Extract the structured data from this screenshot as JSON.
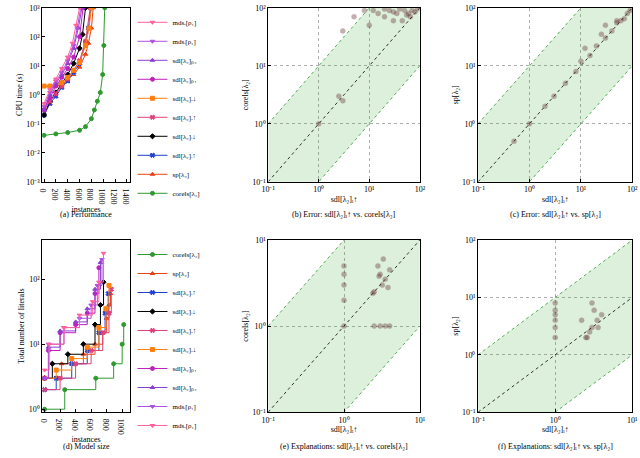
{
  "chart_data": [
    {
      "type": "line",
      "title": "(a) Performance",
      "x_label": "instances",
      "y_label": "CPU time (s)",
      "log": "y",
      "grid": false,
      "legend": "right",
      "line_style": "solid",
      "xlim": [
        -30,
        1450
      ],
      "xticks": [
        0,
        200,
        400,
        600,
        800,
        1000,
        1200,
        1400
      ],
      "ylim": [
        0.001,
        1000
      ],
      "yticks": [
        {
          "value": 0.001,
          "label": "10⁻³"
        },
        {
          "value": 0.01,
          "label": "10⁻²"
        },
        {
          "value": 0.1,
          "label": "10⁻¹"
        },
        {
          "value": 1,
          "label": "10⁰"
        },
        {
          "value": 10,
          "label": "10¹"
        },
        {
          "value": 100,
          "label": "10²"
        },
        {
          "value": 1000,
          "label": "10³"
        }
      ],
      "series": [
        {
          "name": "corels[λ₂]",
          "color": "#2e9a2e",
          "marker": "circle",
          "x": [
            0,
            200,
            400,
            600,
            700,
            800,
            850,
            900,
            950,
            990,
            1010,
            1025
          ],
          "values": [
            0.04,
            0.045,
            0.05,
            0.06,
            0.08,
            0.15,
            0.3,
            0.6,
            1.2,
            5,
            50,
            1000
          ]
        },
        {
          "name": "sp[λ₂]",
          "color": "#e8421a",
          "marker": "triangle-up",
          "x": [
            0,
            100,
            200,
            300,
            400,
            500,
            600,
            700,
            750,
            800,
            830
          ],
          "values": [
            2,
            2,
            2,
            2.2,
            3.5,
            5,
            9,
            25,
            60,
            200,
            1000
          ]
        },
        {
          "name": "sdl[λ₂]ᵢ↑",
          "color": "#1f3fd0",
          "marker": "x",
          "x": [
            0,
            100,
            200,
            300,
            400,
            500,
            600,
            700,
            750,
            790
          ],
          "values": [
            0.2,
            0.5,
            0.9,
            1.8,
            3,
            6,
            12,
            60,
            200,
            1000
          ]
        },
        {
          "name": "sdl[λ₂]ᵢ↓",
          "color": "#000000",
          "marker": "diamond",
          "x": [
            0,
            100,
            200,
            300,
            400,
            500,
            600,
            650,
            700
          ],
          "values": [
            0.2,
            0.6,
            1.2,
            2.5,
            5,
            12,
            40,
            120,
            1000
          ]
        },
        {
          "name": "sdl[λ₂]ᵣ↑",
          "color": "#e0407a",
          "marker": "x",
          "x": [
            0,
            100,
            200,
            300,
            400,
            500,
            600,
            700,
            780
          ],
          "values": [
            0.3,
            0.6,
            1.1,
            2,
            3.5,
            7,
            15,
            70,
            1000
          ]
        },
        {
          "name": "sdl[λ₂]ᵣ↓",
          "color": "#ff7f0e",
          "marker": "square",
          "x": [
            0,
            100,
            200,
            300,
            400,
            500,
            600,
            700,
            760,
            800
          ],
          "values": [
            2,
            2,
            2.2,
            2.6,
            4,
            7,
            13,
            50,
            200,
            1000
          ]
        },
        {
          "name": "sdl[λ₂]ₚ₁",
          "color": "#c020c0",
          "marker": "circle",
          "x": [
            0,
            100,
            200,
            300,
            400,
            500,
            600,
            660
          ],
          "values": [
            0.3,
            0.8,
            2,
            4,
            8,
            20,
            100,
            1000
          ]
        },
        {
          "name": "sdl[λ₂]ₚ₂",
          "color": "#8a3fd0",
          "marker": "triangle-up",
          "x": [
            0,
            100,
            200,
            300,
            400,
            500,
            580,
            640
          ],
          "values": [
            0.3,
            1,
            2.5,
            5,
            12,
            40,
            200,
            1000
          ]
        },
        {
          "name": "mdsᵢ[ρ₁]",
          "color": "#b050e0",
          "marker": "triangle-down",
          "x": [
            0,
            100,
            200,
            300,
            400,
            500,
            560,
            620
          ],
          "values": [
            0.4,
            1.2,
            3,
            6,
            15,
            50,
            200,
            1000
          ]
        },
        {
          "name": "mdsᵣ[ρ₁]",
          "color": "#ff60a0",
          "marker": "triangle-down",
          "x": [
            0,
            100,
            200,
            300,
            400,
            480,
            540,
            600
          ],
          "values": [
            0.5,
            1.5,
            3.5,
            8,
            20,
            60,
            250,
            1000
          ]
        }
      ]
    },
    {
      "type": "scatter",
      "title": "(b) Error: sdl[λ₂]ᵢ↑ vs. corels[λ₂]",
      "x_label": "sdl[λ₂]ᵢ↑",
      "y_label": "corels[λ₂]",
      "log": true,
      "grid": true,
      "color": "#5b1f1f",
      "marker": "circle",
      "xlim": [
        0.1,
        100
      ],
      "ylim": [
        0.1,
        100
      ],
      "xticks": [
        {
          "value": 0.1,
          "label": "10⁻¹"
        },
        {
          "value": 1,
          "label": "10⁰"
        },
        {
          "value": 10,
          "label": "10¹"
        },
        {
          "value": 100,
          "label": "10²"
        }
      ],
      "yticks": [
        {
          "value": 0.1,
          "label": "10⁻¹"
        },
        {
          "value": 1,
          "label": "10⁰"
        },
        {
          "value": 10,
          "label": "10¹"
        },
        {
          "value": 100,
          "label": "10²"
        }
      ],
      "x": [
        3,
        5,
        8,
        10,
        12,
        15,
        20,
        25,
        30,
        40,
        50,
        60,
        70,
        80,
        90,
        20,
        30,
        1,
        2.5,
        3,
        45,
        55,
        35,
        65
      ],
      "values": [
        40,
        70,
        90,
        50,
        90,
        80,
        95,
        90,
        85,
        95,
        90,
        80,
        90,
        85,
        95,
        70,
        60,
        1,
        3,
        2.5,
        60,
        75,
        80,
        70
      ]
    },
    {
      "type": "scatter",
      "title": "(c) Error: sdl[λ₂]ᵢ↑ vs. sp[λ₂]",
      "x_label": "sdl[λ₂]ᵢ↑",
      "y_label": "sp[λ₂]",
      "log": true,
      "grid": true,
      "color": "#5b1f1f",
      "marker": "circle",
      "xlim": [
        0.1,
        100
      ],
      "ylim": [
        0.1,
        100
      ],
      "xticks": [
        {
          "value": 0.1,
          "label": "10⁻¹"
        },
        {
          "value": 1,
          "label": "10⁰"
        },
        {
          "value": 10,
          "label": "10¹"
        },
        {
          "value": 100,
          "label": "10²"
        }
      ],
      "yticks": [
        {
          "value": 0.1,
          "label": "10⁻¹"
        },
        {
          "value": 1,
          "label": "10⁰"
        },
        {
          "value": 10,
          "label": "10¹"
        },
        {
          "value": 100,
          "label": "10²"
        }
      ],
      "x": [
        0.5,
        1,
        2,
        3,
        5,
        8,
        10,
        15,
        20,
        30,
        40,
        50,
        60,
        80,
        90,
        30,
        50,
        25,
        70,
        12
      ],
      "values": [
        0.5,
        1,
        2,
        3,
        5,
        8,
        12,
        15,
        22,
        30,
        40,
        55,
        60,
        80,
        90,
        50,
        60,
        35,
        65,
        20
      ]
    },
    {
      "type": "line",
      "title": "(d) Model size",
      "x_label": "instances",
      "y_label": "Total number of literals",
      "log": "y",
      "grid": false,
      "legend": "right",
      "line_style": "step",
      "xlim": [
        -30,
        1100
      ],
      "xticks": [
        0,
        200,
        400,
        600,
        800,
        1000
      ],
      "ylim": [
        0.9,
        400
      ],
      "yticks": [
        {
          "value": 1,
          "label": "10⁰"
        },
        {
          "value": 10,
          "label": "10¹"
        },
        {
          "value": 100,
          "label": "10²"
        }
      ],
      "series": [
        {
          "name": "corels[λ₂]",
          "color": "#2e9a2e",
          "marker": "circle",
          "x": [
            0,
            260,
            660,
            890,
            1000,
            1020
          ],
          "values": [
            1,
            2,
            3,
            5,
            10,
            20
          ]
        },
        {
          "name": "sp[λ₂]",
          "color": "#e8421a",
          "marker": "triangle-up",
          "x": [
            0,
            220,
            500,
            650,
            750,
            800,
            830,
            850
          ],
          "values": [
            3,
            5,
            7,
            10,
            15,
            25,
            40,
            60
          ]
        },
        {
          "name": "sdl[λ₂]ᵢ↑",
          "color": "#1f3fd0",
          "marker": "x",
          "x": [
            0,
            150,
            350,
            550,
            700,
            780,
            820
          ],
          "values": [
            2,
            3,
            5,
            8,
            15,
            30,
            60
          ]
        },
        {
          "name": "sdl[λ₂]ᵢ↓",
          "color": "#000000",
          "marker": "diamond",
          "x": [
            0,
            100,
            300,
            500,
            650,
            720,
            760
          ],
          "values": [
            3,
            5,
            7,
            10,
            20,
            40,
            90
          ]
        },
        {
          "name": "sdl[λ₂]ᵣ↑",
          "color": "#e0407a",
          "marker": "x",
          "x": [
            0,
            200,
            400,
            600,
            750,
            830,
            860
          ],
          "values": [
            2,
            3,
            5,
            8,
            15,
            30,
            70
          ]
        },
        {
          "name": "sdl[λ₂]ᵣ↓",
          "color": "#ff7f0e",
          "marker": "square",
          "x": [
            0,
            150,
            350,
            550,
            700,
            790,
            830
          ],
          "values": [
            3,
            4,
            6,
            9,
            18,
            35,
            80
          ]
        },
        {
          "name": "sdl[λ₂]ₚ₁",
          "color": "#c020c0",
          "marker": "circle",
          "x": [
            0,
            50,
            200,
            400,
            550,
            650,
            700
          ],
          "values": [
            3,
            8,
            15,
            20,
            30,
            60,
            150
          ]
        },
        {
          "name": "sdl[λ₂]ₚ₂",
          "color": "#8a3fd0",
          "marker": "triangle-up",
          "x": [
            0,
            50,
            200,
            400,
            550,
            650,
            720
          ],
          "values": [
            3,
            9,
            16,
            22,
            35,
            70,
            180
          ]
        },
        {
          "name": "mdsᵢ[ρ₁]",
          "color": "#b050e0",
          "marker": "triangle-down",
          "x": [
            0,
            50,
            250,
            450,
            600,
            680,
            740
          ],
          "values": [
            3,
            10,
            18,
            25,
            40,
            80,
            200
          ]
        },
        {
          "name": "mdsᵣ[ρ₁]",
          "color": "#ff60a0",
          "marker": "triangle-down",
          "x": [
            0,
            60,
            250,
            450,
            620,
            700,
            760
          ],
          "values": [
            4,
            10,
            18,
            28,
            45,
            90,
            250
          ]
        }
      ]
    },
    {
      "type": "scatter",
      "title": "(e) Explanations: sdl[λ₂]ᵢ↑ vs. corels[λ₂]",
      "x_label": "sdl[λ₂]ᵢ↑",
      "y_label": "corels[λ₂]",
      "log": true,
      "grid": true,
      "color": "#5b1f1f",
      "marker": "circle",
      "xlim": [
        0.1,
        10
      ],
      "ylim": [
        0.1,
        10
      ],
      "xticks": [
        {
          "value": 0.1,
          "label": "10⁻¹"
        },
        {
          "value": 1,
          "label": "10⁰"
        },
        {
          "value": 10,
          "label": "10¹"
        }
      ],
      "yticks": [
        {
          "value": 0.1,
          "label": "10⁻¹"
        },
        {
          "value": 1,
          "label": "10⁰"
        },
        {
          "value": 10,
          "label": "10¹"
        }
      ],
      "x": [
        1,
        1,
        1,
        1,
        1,
        2.5,
        3,
        3.5,
        4,
        2.8,
        3.2,
        3.8,
        2.5,
        3,
        3.5,
        4,
        2.4,
        3.3,
        2.9
      ],
      "values": [
        1,
        2,
        3,
        4,
        5,
        2.5,
        4,
        3.5,
        4.5,
        5,
        3,
        2.8,
        1,
        1,
        1,
        1,
        2.4,
        6,
        3.8
      ]
    },
    {
      "type": "scatter",
      "title": "(f) Explanations: sdl[λ₂]ᵢ↑ vs. sp[λ₂]",
      "x_label": "sdl[λ₂]ᵢ↑",
      "y_label": "sp[λ₂]",
      "log": true,
      "grid": true,
      "color": "#5b1f1f",
      "marker": "circle",
      "xlim": [
        0.1,
        10
      ],
      "ylim": [
        0.1,
        100
      ],
      "xticks": [
        {
          "value": 0.1,
          "label": "10⁻¹"
        },
        {
          "value": 1,
          "label": "10⁰"
        },
        {
          "value": 10,
          "label": "10¹"
        }
      ],
      "yticks": [
        {
          "value": 0.1,
          "label": "10⁻¹"
        },
        {
          "value": 1,
          "label": "10⁰"
        },
        {
          "value": 10,
          "label": "10¹"
        },
        {
          "value": 100,
          "label": "10²"
        }
      ],
      "x": [
        1,
        1,
        1,
        1,
        1,
        1,
        2.5,
        3,
        3.5,
        4,
        3,
        2.8,
        3.2,
        3.6,
        2.6,
        2.2
      ],
      "values": [
        2,
        3,
        4,
        5,
        6,
        8,
        2,
        3,
        4,
        5,
        8,
        2.5,
        6,
        3,
        2,
        4
      ]
    }
  ]
}
